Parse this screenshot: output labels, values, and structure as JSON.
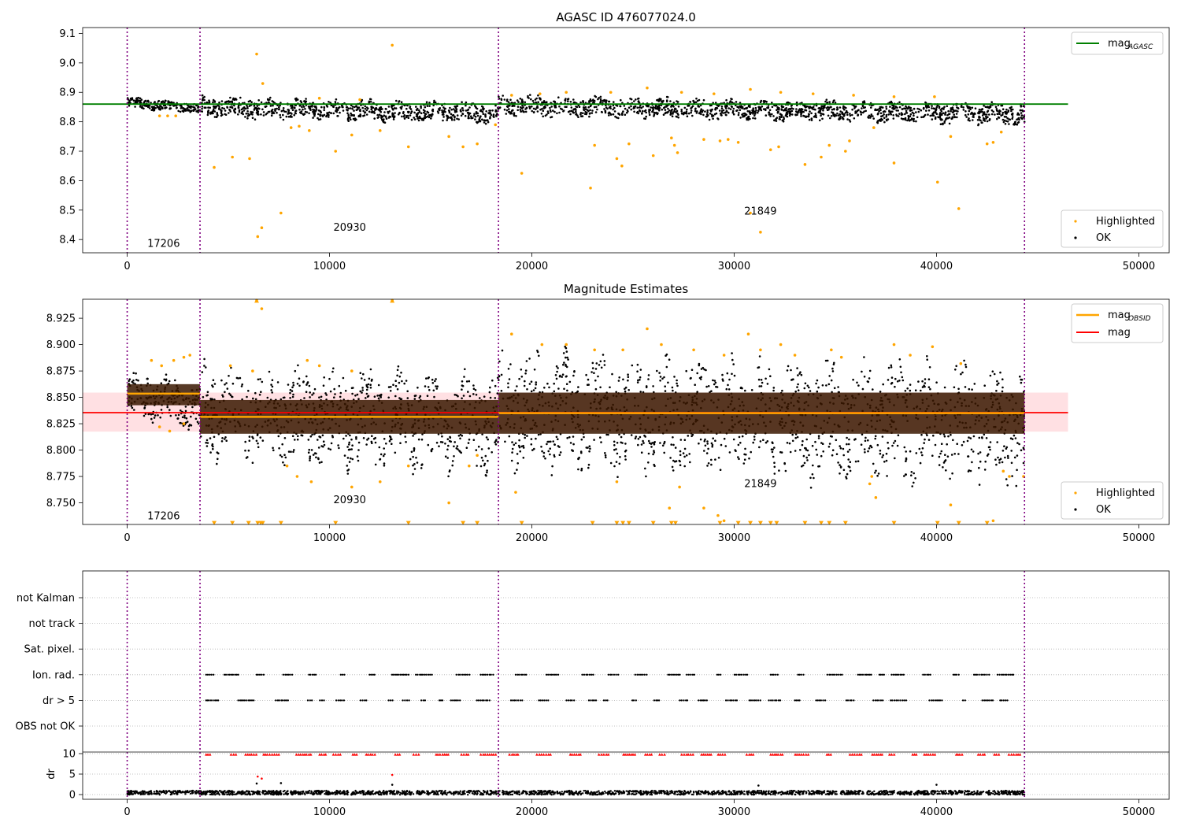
{
  "chart_data": [
    {
      "type": "scatter",
      "title": "AGASC ID 476077024.0",
      "xlim": [
        -2200,
        51500
      ],
      "ylim": [
        8.355,
        9.12
      ],
      "xticks": [
        0,
        10000,
        20000,
        30000,
        40000,
        50000
      ],
      "xtick_labels": [
        "0",
        "10000",
        "20000",
        "30000",
        "40000",
        "50000"
      ],
      "yticks": [
        8.4,
        8.5,
        8.6,
        8.7,
        8.8,
        8.9,
        9.0,
        9.1
      ],
      "ytick_labels": [
        "8.4",
        "8.5",
        "8.6",
        "8.7",
        "8.8",
        "8.9",
        "9.0",
        "9.1"
      ],
      "obsid_boundaries": [
        0,
        3600,
        18350,
        44350
      ],
      "obsid_labels": [
        {
          "text": "17206",
          "x": 1800,
          "y": 8.375
        },
        {
          "text": "20930",
          "x": 11000,
          "y": 8.43
        },
        {
          "text": "21849",
          "x": 31300,
          "y": 8.485
        }
      ],
      "reference_lines": [
        {
          "name": "mag",
          "sub": "AGASC",
          "value": 8.86,
          "x": [
            -2200,
            46500
          ],
          "color": "#008000"
        }
      ],
      "legend": {
        "placement": "upper right",
        "entries": [
          "mag"
        ],
        "sub": [
          "AGASC"
        ]
      },
      "legend2": {
        "placement": "lower right",
        "entries": [
          "Highlighted",
          "OK"
        ]
      },
      "series": [
        {
          "name": "OK",
          "color": "#000000",
          "segments": [
            {
              "x": [
                0,
                3600
              ],
              "y": [
                8.865,
                8.845
              ],
              "spread": 0.018
            },
            {
              "x": [
                3600,
                18350
              ],
              "y": [
                8.85,
                8.83
              ],
              "spread": 0.035
            },
            {
              "x": [
                18350,
                44350
              ],
              "y": [
                8.855,
                8.825
              ],
              "spread": 0.035
            }
          ]
        },
        {
          "name": "Highlighted",
          "color": "#ffa500",
          "points": [
            [
              6400,
              9.03
            ],
            [
              13100,
              9.06
            ],
            [
              6700,
              8.93
            ],
            [
              6450,
              8.41
            ],
            [
              6650,
              8.44
            ],
            [
              7600,
              8.49
            ],
            [
              4300,
              8.645
            ],
            [
              5200,
              8.68
            ],
            [
              6050,
              8.675
            ],
            [
              10300,
              8.7
            ],
            [
              11100,
              8.755
            ],
            [
              13900,
              8.715
            ],
            [
              15900,
              8.75
            ],
            [
              16600,
              8.715
            ],
            [
              17300,
              8.725
            ],
            [
              18200,
              8.79
            ],
            [
              19500,
              8.625
            ],
            [
              22900,
              8.575
            ],
            [
              23100,
              8.72
            ],
            [
              24200,
              8.675
            ],
            [
              24450,
              8.65
            ],
            [
              24800,
              8.725
            ],
            [
              26000,
              8.685
            ],
            [
              26900,
              8.745
            ],
            [
              27050,
              8.72
            ],
            [
              27200,
              8.695
            ],
            [
              28500,
              8.74
            ],
            [
              29300,
              8.735
            ],
            [
              29700,
              8.74
            ],
            [
              30200,
              8.73
            ],
            [
              30800,
              8.49
            ],
            [
              31300,
              8.425
            ],
            [
              31800,
              8.705
            ],
            [
              32200,
              8.715
            ],
            [
              33500,
              8.655
            ],
            [
              34300,
              8.68
            ],
            [
              34700,
              8.72
            ],
            [
              35500,
              8.7
            ],
            [
              35700,
              8.735
            ],
            [
              36900,
              8.78
            ],
            [
              37900,
              8.66
            ],
            [
              40050,
              8.595
            ],
            [
              40700,
              8.75
            ],
            [
              41100,
              8.505
            ],
            [
              42500,
              8.725
            ],
            [
              42800,
              8.73
            ],
            [
              43200,
              8.765
            ],
            [
              8100,
              8.78
            ],
            [
              8500,
              8.785
            ],
            [
              9000,
              8.77
            ],
            [
              12500,
              8.77
            ],
            [
              1600,
              8.82
            ],
            [
              2000,
              8.82
            ],
            [
              2400,
              8.82
            ],
            [
              19000,
              8.89
            ],
            [
              20400,
              8.895
            ],
            [
              21700,
              8.9
            ],
            [
              23900,
              8.9
            ],
            [
              25700,
              8.915
            ],
            [
              27400,
              8.9
            ],
            [
              29000,
              8.895
            ],
            [
              30800,
              8.91
            ],
            [
              32300,
              8.9
            ],
            [
              33900,
              8.895
            ],
            [
              35900,
              8.89
            ],
            [
              37900,
              8.885
            ],
            [
              39900,
              8.885
            ],
            [
              9500,
              8.88
            ],
            [
              11500,
              8.875
            ]
          ]
        }
      ]
    },
    {
      "type": "scatter",
      "title": "Magnitude Estimates",
      "xlim": [
        -2200,
        51500
      ],
      "ylim": [
        8.7295,
        8.943
      ],
      "xticks": [
        0,
        10000,
        20000,
        30000,
        40000,
        50000
      ],
      "xtick_labels": [
        "0",
        "10000",
        "20000",
        "30000",
        "40000",
        "50000"
      ],
      "yticks": [
        8.75,
        8.775,
        8.8,
        8.825,
        8.85,
        8.875,
        8.9,
        8.925
      ],
      "ytick_labels": [
        "8.750",
        "8.775",
        "8.800",
        "8.825",
        "8.850",
        "8.875",
        "8.900",
        "8.925"
      ],
      "obsid_boundaries": [
        0,
        3600,
        18350,
        44350
      ],
      "obsid_labels": [
        {
          "text": "17206",
          "x": 1800,
          "y": 8.7345
        },
        {
          "text": "20930",
          "x": 11000,
          "y": 8.7495
        },
        {
          "text": "21849",
          "x": 31300,
          "y": 8.765
        }
      ],
      "reference_lines": [
        {
          "name": "mag",
          "value": 8.8355,
          "x": [
            -2200,
            46500
          ],
          "color": "#ff0000"
        }
      ],
      "mag_band": {
        "low": 8.8175,
        "high": 8.8545,
        "x": [
          -2200,
          46500
        ],
        "color": "#ffe0e3"
      },
      "obsid_levels": [
        {
          "x": [
            0,
            3600
          ],
          "value": 8.8535,
          "band": [
            8.8425,
            8.8625
          ]
        },
        {
          "x": [
            3600,
            18350
          ],
          "value": 8.8315,
          "band": [
            8.8155,
            8.8475
          ]
        },
        {
          "x": [
            18350,
            44350
          ],
          "value": 8.835,
          "band": [
            8.8155,
            8.8545
          ]
        }
      ],
      "legend": {
        "placement": "upper right",
        "entries": [
          "mag",
          "mag"
        ],
        "sub": [
          "OBSID",
          ""
        ]
      },
      "legend2": {
        "placement": "lower right",
        "entries": [
          "Highlighted",
          "OK"
        ]
      },
      "series": [
        {
          "name": "OK",
          "color": "#000000",
          "segments": [
            {
              "x": [
                0,
                3600
              ],
              "y": [
                8.855,
                8.84
              ],
              "spread": 0.022
            },
            {
              "x": [
                3600,
                18350
              ],
              "y": [
                8.835,
                8.825
              ],
              "spread": 0.045
            },
            {
              "x": [
                18350,
                44350
              ],
              "y": [
                8.838,
                8.822
              ],
              "spread": 0.055
            }
          ]
        },
        {
          "name": "Highlighted",
          "color": "#ffa500",
          "points": [
            [
              6400,
              8.942
            ],
            [
              6650,
              8.934
            ],
            [
              13100,
              8.942
            ],
            [
              1200,
              8.885
            ],
            [
              1700,
              8.88
            ],
            [
              2300,
              8.885
            ],
            [
              2800,
              8.888
            ],
            [
              3100,
              8.89
            ],
            [
              1600,
              8.822
            ],
            [
              2100,
              8.818
            ],
            [
              2800,
              8.825
            ],
            [
              5100,
              8.88
            ],
            [
              6200,
              8.875
            ],
            [
              8900,
              8.885
            ],
            [
              9500,
              8.88
            ],
            [
              11100,
              8.875
            ],
            [
              7900,
              8.785
            ],
            [
              8400,
              8.775
            ],
            [
              9100,
              8.77
            ],
            [
              11100,
              8.765
            ],
            [
              12500,
              8.77
            ],
            [
              13900,
              8.785
            ],
            [
              15900,
              8.75
            ],
            [
              16900,
              8.785
            ],
            [
              17300,
              8.795
            ],
            [
              19200,
              8.76
            ],
            [
              24200,
              8.77
            ],
            [
              25700,
              8.915
            ],
            [
              26800,
              8.745
            ],
            [
              27300,
              8.765
            ],
            [
              28500,
              8.745
            ],
            [
              29200,
              8.738
            ],
            [
              29500,
              8.733
            ],
            [
              30700,
              8.91
            ],
            [
              32300,
              8.9
            ],
            [
              34800,
              8.895
            ],
            [
              36800,
              8.775
            ],
            [
              36700,
              8.768
            ],
            [
              37000,
              8.755
            ],
            [
              37900,
              8.9
            ],
            [
              39800,
              8.898
            ],
            [
              40700,
              8.748
            ],
            [
              42800,
              8.733
            ],
            [
              43300,
              8.78
            ],
            [
              43600,
              8.775
            ],
            [
              44300,
              8.775
            ],
            [
              19000,
              8.91
            ],
            [
              20500,
              8.9
            ],
            [
              21700,
              8.9
            ],
            [
              23100,
              8.895
            ],
            [
              24500,
              8.895
            ],
            [
              26400,
              8.9
            ],
            [
              28000,
              8.895
            ],
            [
              29500,
              8.89
            ],
            [
              31300,
              8.895
            ],
            [
              33000,
              8.89
            ],
            [
              35300,
              8.888
            ],
            [
              38700,
              8.89
            ],
            [
              41200,
              8.882
            ]
          ]
        },
        {
          "name": "out of range low",
          "color": "#ffa500",
          "marker": "triangle-down",
          "y": 8.7305,
          "x": [
            4300,
            5200,
            6000,
            6450,
            6600,
            6700,
            7600,
            10300,
            13900,
            16600,
            17300,
            19500,
            23000,
            24200,
            24500,
            24800,
            26000,
            26900,
            27100,
            29300,
            30200,
            30800,
            31300,
            31800,
            32100,
            33500,
            34300,
            34700,
            35500,
            37900,
            40050,
            41100,
            42500
          ]
        },
        {
          "name": "out of range high",
          "color": "#ffa500",
          "marker": "triangle-up",
          "y": 8.942,
          "x": [
            6400,
            13100
          ]
        }
      ]
    },
    {
      "type": "scatter",
      "xlim": [
        -2200,
        51500
      ],
      "category_ticks": [
        "not Kalman",
        "not track",
        "Sat. pixel.",
        "Ion. rad.",
        "dr > 5",
        "OBS not OK"
      ],
      "dr_ylabel": "dr",
      "dr_yticks": [
        0,
        5,
        10
      ],
      "dr_ytick_labels": [
        "0",
        "5",
        "10"
      ],
      "dr_ylim": [
        -0.6,
        10.6
      ],
      "xticks": [
        0,
        10000,
        20000,
        30000,
        40000,
        50000
      ],
      "xtick_labels": [
        "0",
        "10000",
        "20000",
        "30000",
        "40000",
        "50000"
      ],
      "obsid_boundaries": [
        0,
        3600,
        18350,
        44350
      ],
      "flag_rows": [
        {
          "label": "Ion. rad.",
          "color": "#000000",
          "x_range": [
            3900,
            44300
          ]
        },
        {
          "label": "dr > 5",
          "color": "#000000",
          "x_range": [
            3900,
            44300
          ]
        }
      ],
      "dr_series": [
        {
          "name": "dr",
          "color": "#000000",
          "x": [
            0,
            44350
          ],
          "y": [
            0.45,
            0.45
          ],
          "spread": 0.5
        },
        {
          "name": "dr clipped",
          "color": "#ff0000",
          "marker": "triangle-up",
          "y": 9.8,
          "x_range": [
            3900,
            44300
          ]
        },
        {
          "name": "dr outliers",
          "color": "#ff0000",
          "points": [
            [
              6450,
              4.4
            ],
            [
              6650,
              3.9
            ],
            [
              13100,
              4.8
            ]
          ]
        },
        {
          "name": "dr outliers black",
          "color": "#000000",
          "points": [
            [
              6400,
              2.7
            ],
            [
              7600,
              2.8
            ],
            [
              13100,
              2.4
            ],
            [
              40000,
              2.4
            ],
            [
              31200,
              2.2
            ]
          ]
        }
      ]
    }
  ]
}
